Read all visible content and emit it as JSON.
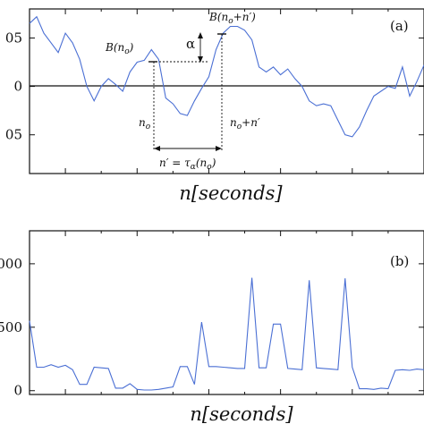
{
  "chart_data": [
    {
      "type": "line",
      "panel_label": "(a)",
      "xlabel": "n[seconds]",
      "ylabel": "",
      "ylim": [
        -0.09,
        0.08
      ],
      "yticks": [
        "05",
        "0",
        "05"
      ],
      "ytick_values": [
        0.05,
        0,
        -0.05
      ],
      "x": [
        0,
        1,
        2,
        3,
        4,
        5,
        6,
        7,
        8,
        9,
        10,
        11,
        12,
        13,
        14,
        15,
        16,
        17,
        18,
        19,
        20,
        21,
        22,
        23,
        24,
        25,
        26,
        27,
        28,
        29,
        30,
        31,
        32,
        33,
        34,
        35,
        36,
        37,
        38,
        39,
        40,
        41,
        42,
        43,
        44,
        45,
        46,
        47,
        48,
        49,
        50,
        51,
        52,
        53,
        54,
        55
      ],
      "y": [
        0.065,
        0.072,
        0.055,
        0.045,
        0.035,
        0.055,
        0.045,
        0.028,
        0.0,
        -0.015,
        0.0,
        0.008,
        0.002,
        -0.005,
        0.015,
        0.025,
        0.027,
        0.038,
        0.028,
        -0.012,
        -0.018,
        -0.028,
        -0.03,
        -0.015,
        -0.002,
        0.01,
        0.038,
        0.055,
        0.062,
        0.062,
        0.058,
        0.048,
        0.02,
        0.015,
        0.02,
        0.012,
        0.018,
        0.008,
        0.0,
        -0.015,
        -0.02,
        -0.018,
        -0.02,
        -0.035,
        -0.05,
        -0.052,
        -0.042,
        -0.025,
        -0.01,
        -0.005,
        0.0,
        -0.002,
        0.02,
        -0.01,
        0.005,
        0.022
      ],
      "annotations": {
        "point_a": "B(n",
        "point_a_sub": "o",
        "point_a_close": ")",
        "point_b": "B(n",
        "point_b_sub": "o",
        "point_b_close": "+n′)",
        "alpha": "α",
        "n0": "n",
        "n0_sub": "o",
        "n0n": "n",
        "n0n_sub": "o",
        "n0n_close": "+n′",
        "tau": "n′ = τ",
        "tau_sub": "α",
        "tau_close": "(n",
        "tau_close_sub": "o",
        "tau_end": ")"
      }
    },
    {
      "type": "line",
      "panel_label": "(b)",
      "xlabel": "n[seconds]",
      "ylabel": "",
      "ylim": [
        -30,
        1260
      ],
      "yticks": [
        "000",
        "500",
        "0"
      ],
      "ytick_values": [
        1000,
        500,
        0
      ],
      "x": [
        0,
        1,
        2,
        3,
        4,
        5,
        6,
        7,
        8,
        9,
        10,
        11,
        12,
        13,
        14,
        15,
        16,
        17,
        18,
        19,
        20,
        21,
        22,
        23,
        24,
        25,
        26,
        27,
        28,
        29,
        30,
        31,
        32,
        33,
        34,
        35,
        36,
        37,
        38,
        39,
        40,
        41,
        42,
        43,
        44,
        45,
        46,
        47,
        48,
        49,
        50,
        51,
        52,
        53,
        54,
        55
      ],
      "y": [
        550,
        185,
        185,
        205,
        185,
        200,
        165,
        50,
        50,
        185,
        180,
        175,
        20,
        20,
        55,
        10,
        5,
        5,
        10,
        20,
        30,
        190,
        190,
        50,
        540,
        190,
        190,
        185,
        180,
        175,
        175,
        890,
        180,
        180,
        525,
        525,
        175,
        170,
        165,
        870,
        180,
        175,
        170,
        165,
        885,
        185,
        15,
        15,
        10,
        20,
        15,
        160,
        165,
        160,
        170,
        165
      ]
    }
  ]
}
